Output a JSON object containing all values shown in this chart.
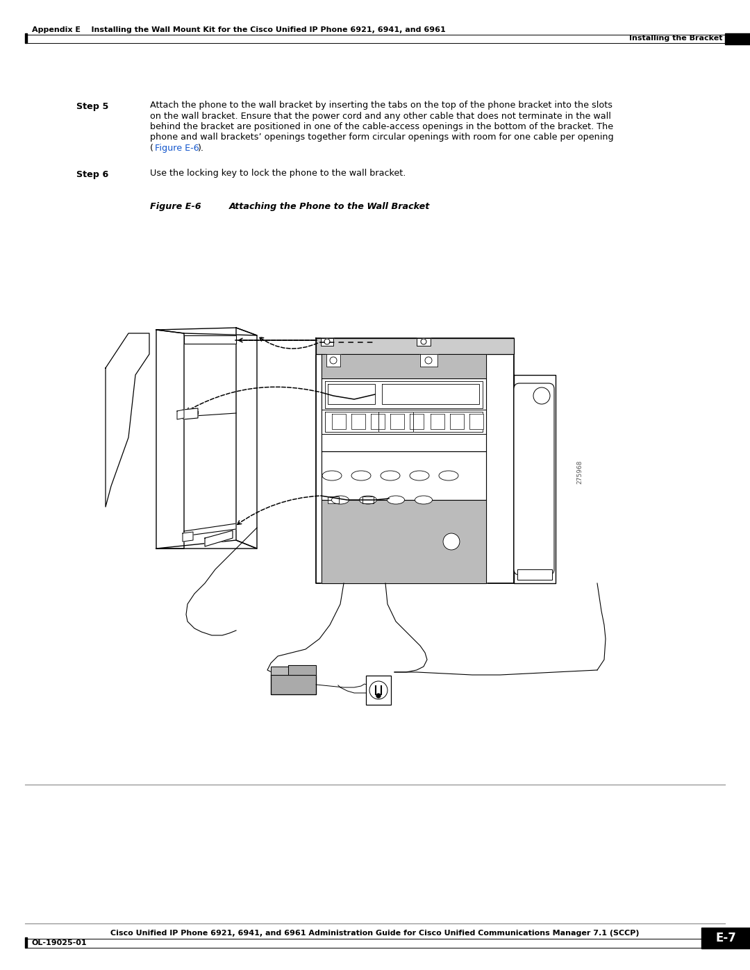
{
  "bg_color": "#ffffff",
  "page_width": 10.8,
  "page_height": 13.97,
  "header_left_text": "Appendix E    Installing the Wall Mount Kit for the Cisco Unified IP Phone 6921, 6941, and 6961",
  "header_right_text": "Installing the Bracket",
  "footer_center_text": "Cisco Unified IP Phone 6921, 6941, and 6961 Administration Guide for Cisco Unified Communications Manager 7.1 (SCCP)",
  "footer_left_text": "OL-19025-01",
  "footer_right_text": "E-7",
  "step5_label": "Step 5",
  "step5_lines": [
    "Attach the phone to the wall bracket by inserting the tabs on the top of the phone bracket into the slots",
    "on the wall bracket. Ensure that the power cord and any other cable that does not terminate in the wall",
    "behind the bracket are positioned in one of the cable-access openings in the bottom of the bracket. The",
    "phone and wall brackets’ openings together form circular openings with room for one cable per opening"
  ],
  "step5_link": "Figure E-6",
  "step6_label": "Step 6",
  "step6_text": "Use the locking key to lock the phone to the wall bracket.",
  "figure_label": "Figure E-6",
  "figure_title": "Attaching the Phone to the Wall Bracket",
  "figure_code": "275968",
  "header_font_size": 8.0,
  "body_font_size": 9.2,
  "step_label_font_size": 9.2,
  "figure_label_font_size": 9.2,
  "footer_font_size": 8.0,
  "line_color": "#000000",
  "light_grey": "#cccccc",
  "page_number_bg": "#000000",
  "page_number_color": "#ffffff",
  "link_color": "#1155CC"
}
